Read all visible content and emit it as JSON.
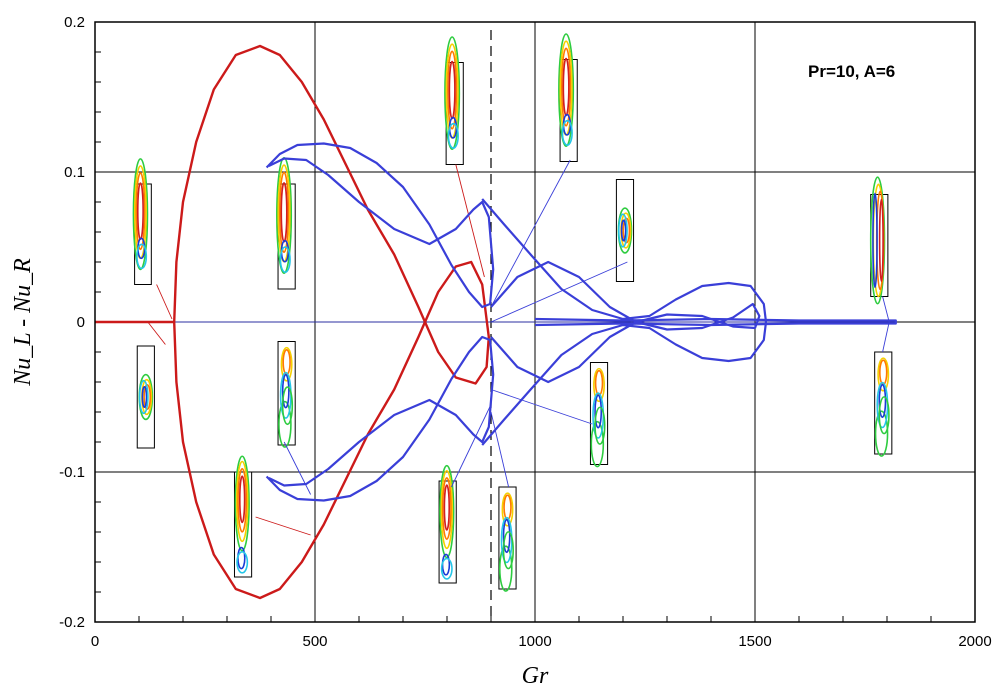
{
  "chart_data": {
    "type": "line",
    "title": "",
    "annotation": "Pr=10,  A=6",
    "xlabel": "Gr",
    "ylabel": "Nu_L - Nu_R",
    "xlim": [
      0,
      2000
    ],
    "ylim": [
      -0.2,
      0.2
    ],
    "x_ticks": [
      0,
      500,
      1000,
      1500,
      2000
    ],
    "y_ticks": [
      -0.2,
      -0.1,
      0,
      0.1,
      0.2
    ],
    "x_tick_labels": [
      "0",
      "500",
      "1000",
      "1500",
      "2000"
    ],
    "y_tick_labels": [
      "-0.2",
      "-0.1",
      "0",
      "0.1",
      "0.2"
    ],
    "grid": true,
    "dashed_reference_x": 900,
    "colors": {
      "symmetric_branch": "#cc1a1a",
      "asymmetric_branch": "#3a3fd8",
      "grid": "#000000"
    },
    "series": [
      {
        "color": "#cc1a1a",
        "points": [
          [
            180,
            0
          ],
          [
            185,
            0.04
          ],
          [
            200,
            0.08
          ],
          [
            230,
            0.12
          ],
          [
            270,
            0.155
          ],
          [
            320,
            0.178
          ],
          [
            375,
            0.184
          ],
          [
            420,
            0.178
          ],
          [
            470,
            0.16
          ],
          [
            520,
            0.135
          ],
          [
            570,
            0.105
          ],
          [
            620,
            0.075
          ],
          [
            680,
            0.045
          ],
          [
            735,
            0.01
          ],
          [
            780,
            -0.02
          ],
          [
            820,
            -0.037
          ],
          [
            865,
            -0.041
          ],
          [
            890,
            -0.03
          ],
          [
            895,
            -0.01
          ],
          [
            880,
            0.025
          ],
          [
            855,
            0.04
          ],
          [
            820,
            0.037
          ],
          [
            780,
            0.02
          ],
          [
            735,
            -0.01
          ],
          [
            680,
            -0.045
          ],
          [
            620,
            -0.075
          ],
          [
            570,
            -0.105
          ],
          [
            520,
            -0.135
          ],
          [
            470,
            -0.16
          ],
          [
            420,
            -0.178
          ],
          [
            375,
            -0.184
          ],
          [
            320,
            -0.178
          ],
          [
            270,
            -0.155
          ],
          [
            230,
            -0.12
          ],
          [
            200,
            -0.08
          ],
          [
            185,
            -0.04
          ],
          [
            180,
            0
          ]
        ]
      },
      {
        "color": "#cc1a1a",
        "points": [
          [
            0,
            0
          ],
          [
            180,
            0
          ]
        ]
      },
      {
        "color": "#3a3fd8",
        "points": [
          [
            390,
            0.103
          ],
          [
            420,
            0.112
          ],
          [
            460,
            0.118
          ],
          [
            520,
            0.119
          ],
          [
            580,
            0.116
          ],
          [
            640,
            0.106
          ],
          [
            700,
            0.09
          ],
          [
            760,
            0.065
          ],
          [
            810,
            0.038
          ],
          [
            850,
            0.02
          ],
          [
            880,
            0.01
          ],
          [
            898,
            0.012
          ],
          [
            905,
            0.035
          ],
          [
            895,
            0.07
          ],
          [
            880,
            0.08
          ],
          [
            860,
            0.075
          ],
          [
            820,
            0.062
          ],
          [
            760,
            0.052
          ],
          [
            680,
            0.062
          ],
          [
            600,
            0.08
          ],
          [
            530,
            0.098
          ],
          [
            480,
            0.108
          ],
          [
            430,
            0.109
          ],
          [
            395,
            0.104
          ]
        ]
      },
      {
        "color": "#3a3fd8",
        "points": [
          [
            390,
            -0.103
          ],
          [
            420,
            -0.112
          ],
          [
            460,
            -0.118
          ],
          [
            520,
            -0.119
          ],
          [
            580,
            -0.116
          ],
          [
            640,
            -0.106
          ],
          [
            700,
            -0.09
          ],
          [
            760,
            -0.065
          ],
          [
            810,
            -0.038
          ],
          [
            850,
            -0.02
          ],
          [
            880,
            -0.01
          ],
          [
            898,
            -0.012
          ],
          [
            905,
            -0.035
          ],
          [
            895,
            -0.07
          ],
          [
            880,
            -0.08
          ],
          [
            860,
            -0.075
          ],
          [
            820,
            -0.062
          ],
          [
            760,
            -0.052
          ],
          [
            680,
            -0.062
          ],
          [
            600,
            -0.08
          ],
          [
            530,
            -0.098
          ],
          [
            480,
            -0.108
          ],
          [
            430,
            -0.109
          ],
          [
            395,
            -0.104
          ]
        ]
      },
      {
        "color": "#3a3fd8",
        "points": [
          [
            880,
            0.082
          ],
          [
            930,
            0.065
          ],
          [
            990,
            0.045
          ],
          [
            1060,
            0.022
          ],
          [
            1130,
            0.008
          ],
          [
            1200,
            0.002
          ],
          [
            1260,
            0.004
          ],
          [
            1320,
            0.015
          ],
          [
            1380,
            0.024
          ],
          [
            1440,
            0.026
          ],
          [
            1490,
            0.024
          ],
          [
            1520,
            0.012
          ],
          [
            1525,
            0
          ],
          [
            1520,
            -0.012
          ],
          [
            1490,
            -0.024
          ],
          [
            1440,
            -0.026
          ],
          [
            1380,
            -0.024
          ],
          [
            1320,
            -0.015
          ],
          [
            1260,
            -0.004
          ],
          [
            1200,
            -0.002
          ],
          [
            1130,
            -0.008
          ],
          [
            1060,
            -0.022
          ],
          [
            990,
            -0.045
          ],
          [
            930,
            -0.065
          ],
          [
            880,
            -0.082
          ]
        ]
      },
      {
        "color": "#3a3fd8",
        "points": [
          [
            900,
            0.01
          ],
          [
            960,
            0.03
          ],
          [
            1030,
            0.04
          ],
          [
            1100,
            0.03
          ],
          [
            1170,
            0.01
          ],
          [
            1230,
            0
          ],
          [
            1300,
            -0.005
          ],
          [
            1380,
            -0.004
          ],
          [
            1450,
            0.003
          ],
          [
            1495,
            0.012
          ],
          [
            1510,
            0.004
          ],
          [
            1500,
            -0.004
          ],
          [
            1450,
            -0.003
          ],
          [
            1380,
            0.004
          ],
          [
            1300,
            0.005
          ],
          [
            1230,
            0
          ],
          [
            1170,
            -0.01
          ],
          [
            1100,
            -0.03
          ],
          [
            1030,
            -0.04
          ],
          [
            960,
            -0.03
          ],
          [
            900,
            -0.01
          ]
        ]
      },
      {
        "color": "#3a3fd8",
        "points": [
          [
            1000,
            0.002
          ],
          [
            1200,
            0.001
          ],
          [
            1400,
            0.002
          ],
          [
            1600,
            0.001
          ],
          [
            1820,
            0.001
          ],
          [
            1820,
            -0.001
          ],
          [
            1600,
            -0.001
          ],
          [
            1400,
            -0.002
          ],
          [
            1200,
            -0.001
          ],
          [
            1000,
            -0.002
          ]
        ]
      }
    ],
    "pointer_lines": [
      {
        "color": "#cc1a1a",
        "from": [
          140,
          0.025
        ],
        "to": [
          175,
          0.002
        ]
      },
      {
        "color": "#cc1a1a",
        "from": [
          120,
          0
        ],
        "to": [
          160,
          -0.015
        ]
      },
      {
        "color": "#cc1a1a",
        "from": [
          365,
          -0.13
        ],
        "to": [
          490,
          -0.142
        ]
      },
      {
        "color": "#cc1a1a",
        "from": [
          820,
          0.105
        ],
        "to": [
          885,
          0.03
        ]
      },
      {
        "color": "#3a3fd8",
        "from": [
          430,
          -0.08
        ],
        "to": [
          490,
          -0.115
        ]
      },
      {
        "color": "#3a3fd8",
        "from": [
          1080,
          0.108
        ],
        "to": [
          900,
          0.01
        ]
      },
      {
        "color": "#3a3fd8",
        "from": [
          1210,
          0.04
        ],
        "to": [
          900,
          0
        ]
      },
      {
        "color": "#3a3fd8",
        "from": [
          1130,
          -0.068
        ],
        "to": [
          900,
          -0.045
        ]
      },
      {
        "color": "#3a3fd8",
        "from": [
          810,
          -0.11
        ],
        "to": [
          900,
          -0.055
        ]
      },
      {
        "color": "#3a3fd8",
        "from": [
          940,
          -0.11
        ],
        "to": [
          900,
          -0.06
        ]
      },
      {
        "color": "#3a3fd8",
        "from": [
          1790,
          0.017
        ],
        "to": [
          1805,
          0
        ]
      },
      {
        "color": "#3a3fd8",
        "from": [
          1790,
          -0.02
        ],
        "to": [
          1805,
          0
        ]
      }
    ],
    "insets": [
      {
        "x_range": [
          90,
          128
        ],
        "y_range": [
          0.025,
          0.092
        ],
        "pattern": "A"
      },
      {
        "x_range": [
          96,
          135
        ],
        "y_range": [
          -0.084,
          -0.016
        ],
        "pattern": "B"
      },
      {
        "x_range": [
          416,
          455
        ],
        "y_range": [
          0.022,
          0.092
        ],
        "pattern": "A"
      },
      {
        "x_range": [
          416,
          455
        ],
        "y_range": [
          -0.082,
          -0.013
        ],
        "pattern": "C"
      },
      {
        "x_range": [
          317,
          356
        ],
        "y_range": [
          -0.17,
          -0.1
        ],
        "pattern": "D"
      },
      {
        "x_range": [
          798,
          837
        ],
        "y_range": [
          0.105,
          0.173
        ],
        "pattern": "A"
      },
      {
        "x_range": [
          1057,
          1096
        ],
        "y_range": [
          0.107,
          0.175
        ],
        "pattern": "A"
      },
      {
        "x_range": [
          1185,
          1224
        ],
        "y_range": [
          0.027,
          0.095
        ],
        "pattern": "B"
      },
      {
        "x_range": [
          1763,
          1802
        ],
        "y_range": [
          0.017,
          0.085
        ],
        "pattern": "E"
      },
      {
        "x_range": [
          1772,
          1811
        ],
        "y_range": [
          -0.088,
          -0.02
        ],
        "pattern": "C"
      },
      {
        "x_range": [
          1126,
          1165
        ],
        "y_range": [
          -0.095,
          -0.027
        ],
        "pattern": "C"
      },
      {
        "x_range": [
          782,
          821
        ],
        "y_range": [
          -0.174,
          -0.106
        ],
        "pattern": "D"
      },
      {
        "x_range": [
          918,
          957
        ],
        "y_range": [
          -0.178,
          -0.11
        ],
        "pattern": "C"
      }
    ]
  }
}
